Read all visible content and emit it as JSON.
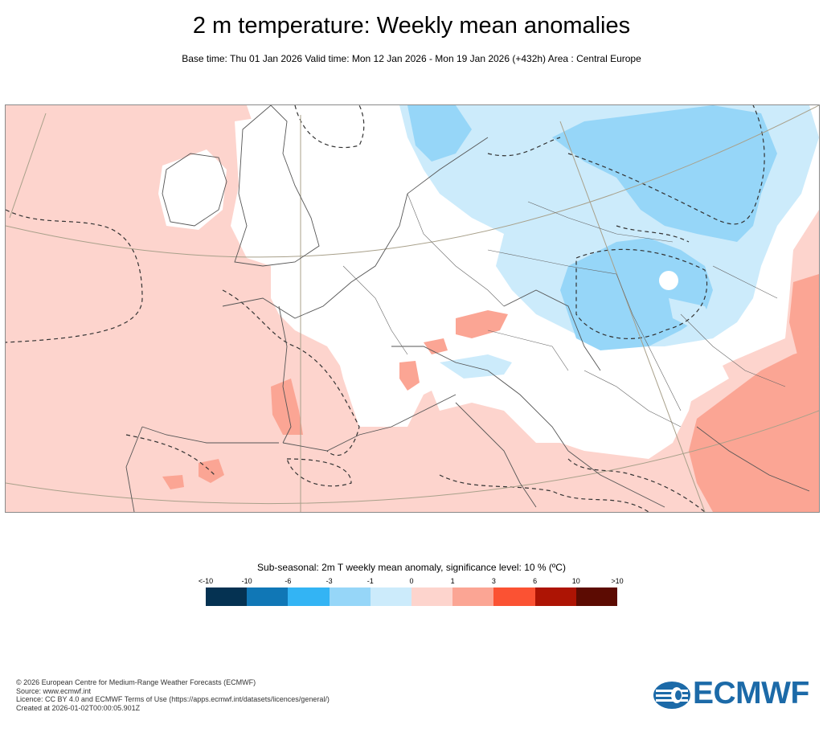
{
  "title": "2 m temperature: Weekly mean anomalies",
  "subtitle": "Base time: Thu 01 Jan 2026 Valid time: Mon 12 Jan 2026 - Mon 19 Jan 2026 (+432h) Area : Central Europe",
  "legend": {
    "title": "Sub-seasonal: 2m T weekly mean anomaly, significance level: 10 % (ºC)",
    "ticks": [
      "<-10",
      "-10",
      "-6",
      "-3",
      "-1",
      "0",
      "1",
      "3",
      "6",
      "10",
      ">10"
    ],
    "colors": [
      "#053252",
      "#1077b6",
      "#33b4f4",
      "#96d6f8",
      "#ccebfb",
      "#fdd4cd",
      "#fba594",
      "#fb5233",
      "#ad1404",
      "#5c0b02"
    ]
  },
  "map": {
    "area": "Central Europe",
    "colors": {
      "warm_light": "#fdd4cd",
      "warm_medium": "#fba594",
      "neutral": "#ffffff",
      "cold_light": "#ccebfb",
      "cold_medium": "#96d6f8"
    }
  },
  "footer": {
    "line1": "© 2026 European Centre for Medium-Range Weather Forecasts (ECMWF)",
    "line2": "Source: www.ecmwf.int",
    "line3": "Licence: CC BY 4.0 and ECMWF Terms of Use (https://apps.ecmwf.int/datasets/licences/general/)",
    "line4": "Created at 2026-01-02T00:00:05.901Z"
  },
  "logo": {
    "text": "ECMWF",
    "color": "#1c6aa8"
  }
}
